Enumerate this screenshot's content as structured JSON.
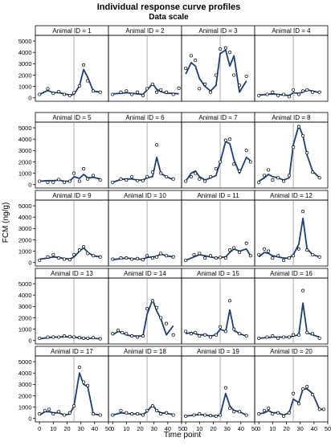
{
  "title": "Individual response curve profiles",
  "subtitle": "Data scale",
  "ylabel": "FCM (ng/g)",
  "xlabel": "Time point",
  "panel_label_prefix": "Animal ID = ",
  "colors": {
    "line": "#1b3f73",
    "marker": "#000000",
    "reference": "#999999",
    "frame": "#000000"
  },
  "chart_data": {
    "type": "line",
    "layout": "panel grid, 5 rows x 4 columns, shared axes",
    "x_ticks": [
      "0",
      "10",
      "20",
      "30",
      "40",
      "50"
    ],
    "y_ticks": [
      "0",
      "1000",
      "2000",
      "3000",
      "4000",
      "5000"
    ],
    "xlim": [
      -3,
      50
    ],
    "ylim": [
      -300,
      5500
    ],
    "reference_line_x": 25,
    "marker": "open circle (observed)",
    "line": "fitted profile",
    "panels": [
      {
        "id": 1,
        "x": [
          0,
          6,
          10,
          14,
          18,
          22,
          25,
          29,
          32,
          35,
          39,
          44
        ],
        "observed": [
          300,
          800,
          400,
          550,
          300,
          200,
          450,
          1050,
          2900,
          1500,
          600,
          500
        ],
        "fitted": [
          300,
          650,
          450,
          450,
          350,
          250,
          300,
          1050,
          2500,
          1800,
          600,
          500
        ]
      },
      {
        "id": 2,
        "x": [
          0,
          6,
          10,
          14,
          18,
          22,
          25,
          29,
          32,
          35,
          39,
          44,
          48
        ],
        "observed": [
          300,
          500,
          600,
          300,
          500,
          200,
          800,
          1200,
          500,
          700,
          500,
          300,
          850
        ],
        "fitted": [
          350,
          400,
          450,
          400,
          350,
          300,
          700,
          1250,
          750,
          550,
          400,
          400,
          350
        ]
      },
      {
        "id": 3,
        "x": [
          0,
          4,
          7,
          10,
          14,
          18,
          22,
          25,
          29,
          32,
          35,
          39,
          44
        ],
        "observed": [
          2600,
          3700,
          3300,
          800,
          1200,
          500,
          2000,
          4300,
          4400,
          4000,
          2000,
          1100,
          1900
        ],
        "fitted": [
          2100,
          3100,
          2800,
          1700,
          1000,
          600,
          1100,
          3900,
          4200,
          2800,
          3700,
          500,
          1500
        ]
      },
      {
        "id": 4,
        "x": [
          0,
          6,
          10,
          14,
          18,
          22,
          25,
          29,
          32,
          35,
          39,
          44
        ],
        "observed": [
          200,
          300,
          500,
          200,
          300,
          100,
          700,
          300,
          600,
          700,
          500,
          500
        ],
        "fitted": [
          250,
          300,
          350,
          300,
          250,
          200,
          450,
          400,
          500,
          700,
          600,
          450
        ]
      },
      {
        "id": 5,
        "x": [
          0,
          6,
          10,
          14,
          18,
          22,
          25,
          29,
          32,
          35,
          39,
          44
        ],
        "observed": [
          300,
          200,
          200,
          450,
          200,
          300,
          1000,
          300,
          1400,
          500,
          800,
          400
        ],
        "fitted": [
          300,
          350,
          350,
          400,
          300,
          300,
          700,
          550,
          900,
          600,
          650,
          500
        ]
      },
      {
        "id": 6,
        "x": [
          0,
          6,
          10,
          14,
          18,
          22,
          25,
          29,
          32,
          35,
          39,
          44
        ],
        "observed": [
          200,
          500,
          400,
          700,
          350,
          350,
          700,
          1100,
          3500,
          1000,
          700,
          500
        ],
        "fitted": [
          200,
          450,
          500,
          500,
          400,
          400,
          600,
          700,
          2400,
          1000,
          700,
          450
        ]
      },
      {
        "id": 7,
        "x": [
          0,
          4,
          7,
          10,
          14,
          18,
          22,
          25,
          29,
          32,
          35,
          39,
          44,
          47
        ],
        "observed": [
          300,
          700,
          1000,
          500,
          300,
          700,
          1400,
          2000,
          3900,
          4000,
          1800,
          1200,
          3000,
          2000
        ],
        "fitted": [
          300,
          1000,
          1200,
          700,
          400,
          600,
          800,
          2000,
          3800,
          3600,
          2200,
          1000,
          2400,
          2100
        ]
      },
      {
        "id": 8,
        "x": [
          0,
          4,
          7,
          10,
          14,
          18,
          22,
          25,
          29,
          32,
          35,
          39,
          44
        ],
        "observed": [
          200,
          800,
          1300,
          400,
          600,
          300,
          800,
          3300,
          5100,
          4300,
          2800,
          1100,
          600
        ],
        "fitted": [
          300,
          600,
          900,
          700,
          600,
          400,
          600,
          3500,
          5200,
          4300,
          2600,
          1200,
          600
        ]
      },
      {
        "id": 9,
        "x": [
          0,
          6,
          10,
          14,
          18,
          22,
          25,
          29,
          32,
          35,
          39,
          44
        ],
        "observed": [
          200,
          500,
          700,
          400,
          300,
          250,
          700,
          1100,
          1400,
          800,
          600,
          500
        ],
        "fitted": [
          300,
          400,
          500,
          450,
          350,
          300,
          500,
          1000,
          1300,
          900,
          600,
          500
        ]
      },
      {
        "id": 10,
        "x": [
          0,
          6,
          10,
          14,
          18,
          22,
          25,
          29,
          32,
          35,
          39,
          44
        ],
        "observed": [
          300,
          400,
          400,
          300,
          350,
          250,
          600,
          400,
          500,
          800,
          600,
          500
        ],
        "fitted": [
          250,
          350,
          400,
          350,
          300,
          300,
          450,
          500,
          550,
          750,
          600,
          500
        ]
      },
      {
        "id": 11,
        "x": [
          0,
          6,
          10,
          14,
          18,
          22,
          25,
          29,
          32,
          35,
          39,
          44,
          47
        ],
        "observed": [
          200,
          700,
          800,
          400,
          600,
          400,
          450,
          400,
          1100,
          1300,
          900,
          1700,
          600
        ],
        "fitted": [
          200,
          500,
          700,
          600,
          500,
          400,
          450,
          500,
          900,
          1200,
          1000,
          1200,
          600
        ]
      },
      {
        "id": 12,
        "x": [
          0,
          4,
          7,
          10,
          14,
          18,
          22,
          25,
          29,
          32,
          35,
          39,
          44
        ],
        "observed": [
          700,
          1200,
          1000,
          400,
          600,
          200,
          400,
          600,
          1200,
          4500,
          1100,
          700,
          500
        ],
        "fitted": [
          500,
          900,
          800,
          600,
          500,
          400,
          400,
          700,
          1600,
          3900,
          1200,
          700,
          500
        ]
      },
      {
        "id": 13,
        "x": [
          0,
          6,
          10,
          14,
          18,
          22,
          25,
          29,
          32,
          35,
          39,
          44
        ],
        "observed": [
          200,
          300,
          300,
          300,
          400,
          350,
          300,
          250,
          200,
          200,
          250,
          150
        ],
        "fitted": [
          150,
          250,
          300,
          300,
          350,
          300,
          300,
          250,
          200,
          200,
          200,
          150
        ]
      },
      {
        "id": 14,
        "x": [
          0,
          4,
          7,
          10,
          14,
          18,
          22,
          25,
          29,
          32,
          35,
          39,
          44
        ],
        "observed": [
          600,
          900,
          700,
          600,
          400,
          300,
          400,
          2800,
          3500,
          2900,
          2000,
          1500,
          500
        ],
        "fitted": [
          500,
          800,
          700,
          500,
          400,
          400,
          400,
          2300,
          3600,
          2600,
          1900,
          500,
          1300
        ]
      },
      {
        "id": 15,
        "x": [
          0,
          4,
          7,
          10,
          14,
          18,
          22,
          25,
          29,
          32,
          35,
          39,
          44
        ],
        "observed": [
          800,
          600,
          700,
          400,
          500,
          300,
          500,
          1200,
          800,
          3500,
          1000,
          600,
          400
        ],
        "fitted": [
          600,
          700,
          600,
          500,
          500,
          400,
          500,
          1000,
          800,
          2700,
          900,
          600,
          400
        ]
      },
      {
        "id": 16,
        "x": [
          0,
          6,
          10,
          14,
          18,
          22,
          25,
          29,
          32,
          35,
          39,
          44
        ],
        "observed": [
          200,
          300,
          400,
          200,
          300,
          300,
          500,
          500,
          4400,
          700,
          600,
          200
        ],
        "fitted": [
          200,
          250,
          300,
          300,
          300,
          300,
          400,
          500,
          3300,
          700,
          500,
          300
        ]
      },
      {
        "id": 17,
        "x": [
          0,
          4,
          7,
          10,
          14,
          18,
          22,
          25,
          29,
          32,
          35,
          39,
          44
        ],
        "observed": [
          400,
          700,
          800,
          400,
          600,
          300,
          500,
          1100,
          4500,
          3200,
          2900,
          400,
          300
        ],
        "fitted": [
          300,
          600,
          600,
          500,
          500,
          300,
          400,
          1100,
          4000,
          3000,
          2800,
          400,
          300
        ]
      },
      {
        "id": 18,
        "x": [
          0,
          6,
          10,
          14,
          18,
          22,
          25,
          29,
          32,
          35,
          39,
          44
        ],
        "observed": [
          300,
          700,
          500,
          400,
          400,
          300,
          700,
          1100,
          700,
          400,
          500,
          300
        ],
        "fitted": [
          300,
          500,
          450,
          400,
          400,
          350,
          600,
          1200,
          700,
          500,
          450,
          350
        ]
      },
      {
        "id": 19,
        "x": [
          0,
          6,
          10,
          14,
          18,
          22,
          25,
          29,
          32,
          35,
          39,
          44
        ],
        "observed": [
          200,
          300,
          400,
          300,
          250,
          200,
          300,
          2700,
          900,
          600,
          600,
          300
        ],
        "fitted": [
          200,
          300,
          350,
          300,
          250,
          200,
          300,
          2200,
          1100,
          700,
          600,
          300
        ]
      },
      {
        "id": 20,
        "x": [
          0,
          4,
          7,
          10,
          14,
          18,
          22,
          25,
          29,
          32,
          35,
          39,
          44,
          47
        ],
        "observed": [
          400,
          700,
          900,
          400,
          500,
          200,
          500,
          2200,
          1300,
          2600,
          2800,
          2100,
          800,
          800
        ],
        "fitted": [
          400,
          500,
          700,
          500,
          500,
          300,
          500,
          1700,
          1400,
          2600,
          2600,
          2200,
          800,
          800
        ]
      }
    ]
  }
}
